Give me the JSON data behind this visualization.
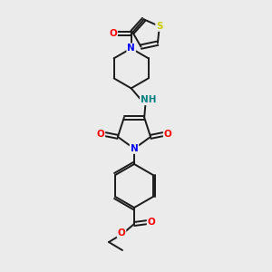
{
  "bg_color": "#ebebeb",
  "bond_color": "#1a1a1a",
  "atom_colors": {
    "N": "#0000ff",
    "O": "#ff0000",
    "S": "#cccc00",
    "NH": "#008080",
    "C": "#1a1a1a"
  },
  "figsize": [
    3.0,
    3.0
  ],
  "dpi": 100
}
